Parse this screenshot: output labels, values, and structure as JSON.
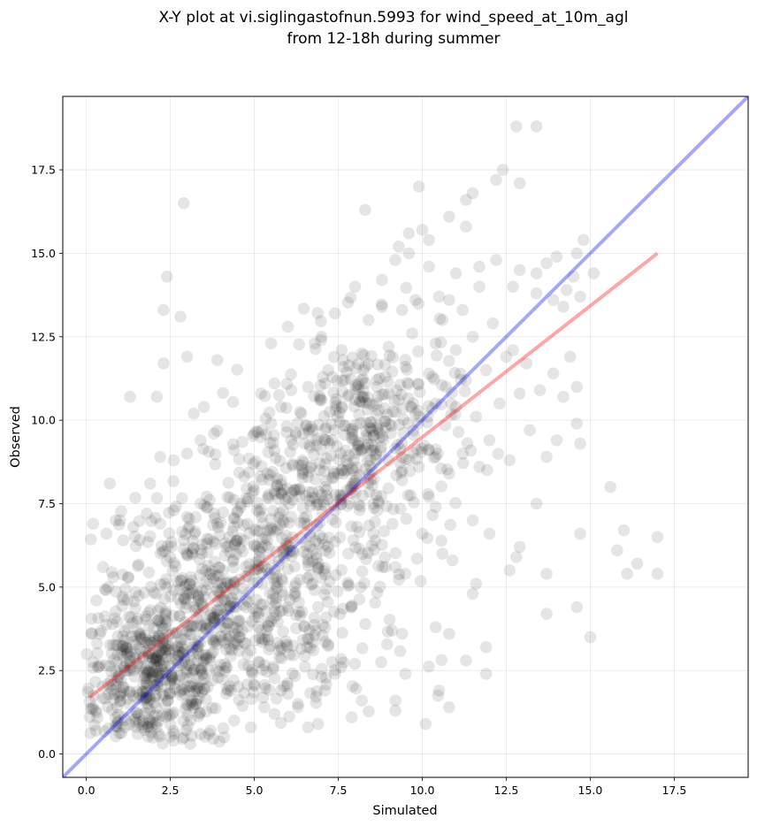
{
  "chart_data": {
    "type": "scatter",
    "title_line1": "X-Y plot at vi.siglingastofnun.5993 for wind_speed_at_10m_agl",
    "title_line2": "from 12-18h during summer",
    "xlabel": "Simulated",
    "ylabel": "Observed",
    "xlim": [
      -0.7,
      19.7
    ],
    "ylim": [
      -0.7,
      19.7
    ],
    "xticks": [
      0.0,
      2.5,
      5.0,
      7.5,
      10.0,
      12.5,
      15.0,
      17.5
    ],
    "yticks": [
      0.0,
      2.5,
      5.0,
      7.5,
      10.0,
      12.5,
      15.0,
      17.5
    ],
    "xtick_labels": [
      "0.0",
      "2.5",
      "5.0",
      "7.5",
      "10.0",
      "12.5",
      "15.0",
      "17.5"
    ],
    "ytick_labels": [
      "0.0",
      "2.5",
      "5.0",
      "7.5",
      "10.0",
      "12.5",
      "15.0",
      "17.5"
    ],
    "grid": true,
    "point_color": "#000000",
    "point_alpha": 0.1,
    "identity_line": {
      "from": [
        -0.7,
        -0.7
      ],
      "to": [
        19.7,
        19.7
      ],
      "color": "#0000ff",
      "alpha": 0.35
    },
    "regression_line": {
      "from": [
        0.1,
        1.7
      ],
      "to": [
        17.0,
        15.0
      ],
      "color": "#ff0000",
      "alpha": 0.35
    },
    "points": [
      [
        2.9,
        16.5
      ],
      [
        12.8,
        18.8
      ],
      [
        13.4,
        18.8
      ],
      [
        12.4,
        17.5
      ],
      [
        12.9,
        17.1
      ],
      [
        12.2,
        17.2
      ],
      [
        9.9,
        17.0
      ],
      [
        11.5,
        16.8
      ],
      [
        11.3,
        16.6
      ],
      [
        8.3,
        16.3
      ],
      [
        10.8,
        16.1
      ],
      [
        10.0,
        15.7
      ],
      [
        11.3,
        15.8
      ],
      [
        10.2,
        15.4
      ],
      [
        9.3,
        15.2
      ],
      [
        9.6,
        15.6
      ],
      [
        14.8,
        15.4
      ],
      [
        14.6,
        15.0
      ],
      [
        14.0,
        14.9
      ],
      [
        13.7,
        14.7
      ],
      [
        13.4,
        14.4
      ],
      [
        10.2,
        14.6
      ],
      [
        11.0,
        14.4
      ],
      [
        11.7,
        14.6
      ],
      [
        12.2,
        14.8
      ],
      [
        12.9,
        14.5
      ],
      [
        15.1,
        14.4
      ],
      [
        14.5,
        14.3
      ],
      [
        14.3,
        13.9
      ],
      [
        14.7,
        13.7
      ],
      [
        14.2,
        13.4
      ],
      [
        13.9,
        13.6
      ],
      [
        13.4,
        13.8
      ],
      [
        2.4,
        14.3
      ],
      [
        2.3,
        13.3
      ],
      [
        2.8,
        13.1
      ],
      [
        12.7,
        14.0
      ],
      [
        11.7,
        14.0
      ],
      [
        8.0,
        14.0
      ],
      [
        8.8,
        14.2
      ],
      [
        9.2,
        14.8
      ],
      [
        9.6,
        15.0
      ],
      [
        10.5,
        13.7
      ],
      [
        10.8,
        13.6
      ],
      [
        11.2,
        13.3
      ],
      [
        10.6,
        13.0
      ],
      [
        9.8,
        13.6
      ],
      [
        9.4,
        13.3
      ],
      [
        8.8,
        13.4
      ],
      [
        8.4,
        13.0
      ],
      [
        7.4,
        13.2
      ],
      [
        7.0,
        12.5
      ],
      [
        6.0,
        12.8
      ],
      [
        5.5,
        12.3
      ],
      [
        6.8,
        12.3
      ],
      [
        7.6,
        12.1
      ],
      [
        8.2,
        12.0
      ],
      [
        9.0,
        12.2
      ],
      [
        9.7,
        12.6
      ],
      [
        10.4,
        12.3
      ],
      [
        11.0,
        12.1
      ],
      [
        11.5,
        12.5
      ],
      [
        12.1,
        12.9
      ],
      [
        12.7,
        12.1
      ],
      [
        13.1,
        11.7
      ],
      [
        12.5,
        11.9
      ],
      [
        11.9,
        11.5
      ],
      [
        11.3,
        11.2
      ],
      [
        10.7,
        11.0
      ],
      [
        10.2,
        11.4
      ],
      [
        9.5,
        11.6
      ],
      [
        8.9,
        11.3
      ],
      [
        8.3,
        11.6
      ],
      [
        7.7,
        11.2
      ],
      [
        7.2,
        11.5
      ],
      [
        6.6,
        11.0
      ],
      [
        6.1,
        10.9
      ],
      [
        5.6,
        11.1
      ],
      [
        5.2,
        10.8
      ],
      [
        5.8,
        10.4
      ],
      [
        6.4,
        10.2
      ],
      [
        7.0,
        10.6
      ],
      [
        7.6,
        10.4
      ],
      [
        8.2,
        10.7
      ],
      [
        8.7,
        10.3
      ],
      [
        9.3,
        10.6
      ],
      [
        9.8,
        10.2
      ],
      [
        10.4,
        10.5
      ],
      [
        11.0,
        10.4
      ],
      [
        11.6,
        10.1
      ],
      [
        12.3,
        10.5
      ],
      [
        12.9,
        10.8
      ],
      [
        13.5,
        10.9
      ],
      [
        13.9,
        11.4
      ],
      [
        14.4,
        11.9
      ],
      [
        14.6,
        11.0
      ],
      [
        14.2,
        10.7
      ],
      [
        14.6,
        9.9
      ],
      [
        14.7,
        9.3
      ],
      [
        14.0,
        9.4
      ],
      [
        13.7,
        8.9
      ],
      [
        13.2,
        9.7
      ],
      [
        12.6,
        8.8
      ],
      [
        12.0,
        9.4
      ],
      [
        11.7,
        8.6
      ],
      [
        11.2,
        9.0
      ],
      [
        10.8,
        8.4
      ],
      [
        10.4,
        8.9
      ],
      [
        9.9,
        8.6
      ],
      [
        9.4,
        8.2
      ],
      [
        9.0,
        8.8
      ],
      [
        8.5,
        8.5
      ],
      [
        8.0,
        8.1
      ],
      [
        7.5,
        8.4
      ],
      [
        7.1,
        8.0
      ],
      [
        6.6,
        8.3
      ],
      [
        6.2,
        7.9
      ],
      [
        5.8,
        8.2
      ],
      [
        5.4,
        7.7
      ],
      [
        5.0,
        7.9
      ],
      [
        4.6,
        7.4
      ],
      [
        4.2,
        7.7
      ],
      [
        3.8,
        7.2
      ],
      [
        3.4,
        7.5
      ],
      [
        3.0,
        7.1
      ],
      [
        2.6,
        7.3
      ],
      [
        2.2,
        6.9
      ],
      [
        1.8,
        7.2
      ],
      [
        1.4,
        6.8
      ],
      [
        1.0,
        7.0
      ],
      [
        0.6,
        6.6
      ],
      [
        0.2,
        6.9
      ],
      [
        0.7,
        8.1
      ],
      [
        1.9,
        8.1
      ],
      [
        2.2,
        8.9
      ],
      [
        2.6,
        8.8
      ],
      [
        3.0,
        9.0
      ],
      [
        3.4,
        9.4
      ],
      [
        3.8,
        9.6
      ],
      [
        4.4,
        9.1
      ],
      [
        5.0,
        9.6
      ],
      [
        5.5,
        9.9
      ],
      [
        6.1,
        9.4
      ],
      [
        6.7,
        9.8
      ],
      [
        1.3,
        10.7
      ],
      [
        2.1,
        10.7
      ],
      [
        3.2,
        10.2
      ],
      [
        3.5,
        10.4
      ],
      [
        3.9,
        11.8
      ],
      [
        2.3,
        11.7
      ],
      [
        3.0,
        11.9
      ],
      [
        15.6,
        8.0
      ],
      [
        16.0,
        6.7
      ],
      [
        15.8,
        6.1
      ],
      [
        16.4,
        5.7
      ],
      [
        17.0,
        6.5
      ],
      [
        17.0,
        5.4
      ],
      [
        16.1,
        5.4
      ],
      [
        14.7,
        6.6
      ],
      [
        14.6,
        4.4
      ],
      [
        15.0,
        3.5
      ],
      [
        13.7,
        4.2
      ],
      [
        13.7,
        5.4
      ],
      [
        13.4,
        7.5
      ],
      [
        12.9,
        6.2
      ],
      [
        12.8,
        5.9
      ],
      [
        12.6,
        5.5
      ],
      [
        12.0,
        6.6
      ],
      [
        11.5,
        7.0
      ],
      [
        11.6,
        5.1
      ],
      [
        11.5,
        4.8
      ],
      [
        11.9,
        3.2
      ],
      [
        11.9,
        2.4
      ],
      [
        11.3,
        2.8
      ],
      [
        10.4,
        3.8
      ],
      [
        10.8,
        3.6
      ],
      [
        10.5,
        1.9
      ],
      [
        10.8,
        1.4
      ],
      [
        10.1,
        0.9
      ],
      [
        9.5,
        2.4
      ],
      [
        9.2,
        1.3
      ],
      [
        9.2,
        1.6
      ],
      [
        9.1,
        3.7
      ],
      [
        9.4,
        3.6
      ],
      [
        9.2,
        5.6
      ],
      [
        8.9,
        5.6
      ],
      [
        8.6,
        6.4
      ],
      [
        10.2,
        7.7
      ],
      [
        10.4,
        7.4
      ],
      [
        10.6,
        6.0
      ],
      [
        10.9,
        5.8
      ],
      [
        10.0,
        6.6
      ],
      [
        8.0,
        2.7
      ],
      [
        8.2,
        1.6
      ],
      [
        7.9,
        1.1
      ],
      [
        7.4,
        2.4
      ],
      [
        7.1,
        1.9
      ],
      [
        6.9,
        0.9
      ],
      [
        6.6,
        0.8
      ],
      [
        6.3,
        1.5
      ],
      [
        6.0,
        1.8
      ],
      [
        5.6,
        1.2
      ],
      [
        5.3,
        1.4
      ],
      [
        4.9,
        0.8
      ],
      [
        4.4,
        1.0
      ],
      [
        4.1,
        0.5
      ],
      [
        3.7,
        0.7
      ],
      [
        3.4,
        0.6
      ],
      [
        2.9,
        0.5
      ],
      [
        2.6,
        0.4
      ],
      [
        0.3,
        4.6
      ],
      [
        0.5,
        5.6
      ],
      [
        1.1,
        6.4
      ],
      [
        0.8,
        5.3
      ],
      [
        0.4,
        3.6
      ],
      [
        0.2,
        1.4
      ]
    ],
    "density": [
      {
        "cx": 2.0,
        "cy": 2.3,
        "sx": 1.2,
        "sy": 1.2,
        "n": 520
      },
      {
        "cx": 3.8,
        "cy": 4.8,
        "sx": 1.4,
        "sy": 1.5,
        "n": 360
      },
      {
        "cx": 6.3,
        "cy": 7.0,
        "sx": 1.4,
        "sy": 1.7,
        "n": 300
      },
      {
        "cx": 8.4,
        "cy": 9.6,
        "sx": 1.3,
        "sy": 1.5,
        "n": 320
      },
      {
        "cx": 6.0,
        "cy": 3.2,
        "sx": 1.6,
        "sy": 1.4,
        "n": 120
      }
    ]
  }
}
